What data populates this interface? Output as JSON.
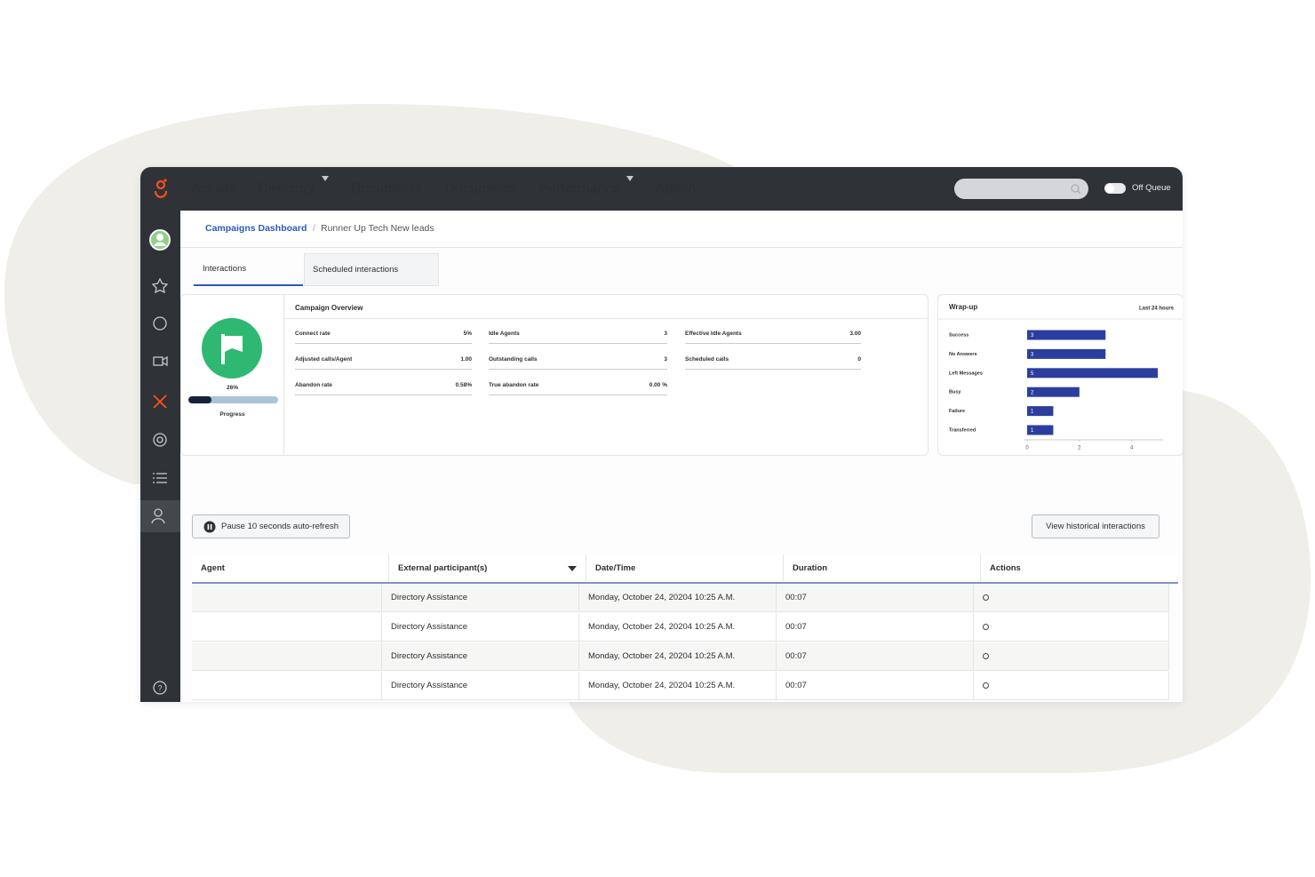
{
  "nav": {
    "items": [
      {
        "label": "Activity"
      },
      {
        "label": "Directory",
        "dropdown": true
      },
      {
        "label": "Documents"
      },
      {
        "label": "Documents"
      },
      {
        "label": "Performance",
        "dropdown": true
      },
      {
        "label": "Admin",
        "active": true
      }
    ],
    "toggle_label": "Off Queue"
  },
  "breadcrumb": [
    "Campaigns Dashboard",
    "Runner Up Tech New leads"
  ],
  "tabs": [
    "Interactions",
    "Scheduled interactions"
  ],
  "progress": {
    "value": 26,
    "label": "26%",
    "caption": "Progress"
  },
  "overview": {
    "title": "Campaign Overview",
    "metrics": [
      {
        "name": "Connect rate",
        "value": "5%"
      },
      {
        "name": "Idle Agents",
        "value": "3"
      },
      {
        "name": "Effective Idle Agents",
        "value": "3.00"
      },
      {
        "name": "Adjusted calls/Agent",
        "value": "1.00"
      },
      {
        "name": "Outstanding calls",
        "value": "3"
      },
      {
        "name": "Scheduled calls",
        "value": "0"
      },
      {
        "name": "Abandon rate",
        "value": "0.58%"
      },
      {
        "name": "True abandon rate",
        "value": "0.00 %"
      }
    ]
  },
  "chart_data": {
    "type": "bar",
    "orientation": "horizontal",
    "title": "Wrap-up",
    "subtitle": "Last 24 hours",
    "categories": [
      "Success",
      "No Answers",
      "Left Messages",
      "Busy",
      "Failure",
      "Transferred"
    ],
    "values": [
      3,
      3,
      5,
      2,
      1,
      1
    ],
    "color": "#2b3ea0",
    "xlim": [
      0,
      5.2
    ],
    "xticks": [
      0,
      2,
      4
    ]
  },
  "buttons": {
    "pause": "Pause 10 seconds auto-refresh",
    "history": "View historical interactions"
  },
  "table": {
    "columns": [
      "Agent",
      "External participant(s)",
      "Date/Time",
      "Duration",
      "Actions"
    ],
    "rows": [
      {
        "participant": "Directory Assistance",
        "datetime": "Monday, October 24, 20204 10:25 A.M.",
        "duration": "00:07"
      },
      {
        "participant": "Directory Assistance",
        "datetime": "Monday, October 24, 20204 10:25 A.M.",
        "duration": "00:07"
      },
      {
        "participant": "Directory Assistance",
        "datetime": "Monday, October 24, 20204 10:25 A.M.",
        "duration": "00:07"
      },
      {
        "participant": "Directory Assistance",
        "datetime": "Monday, October 24, 20204 10:25 A.M.",
        "duration": "00:07"
      }
    ]
  }
}
